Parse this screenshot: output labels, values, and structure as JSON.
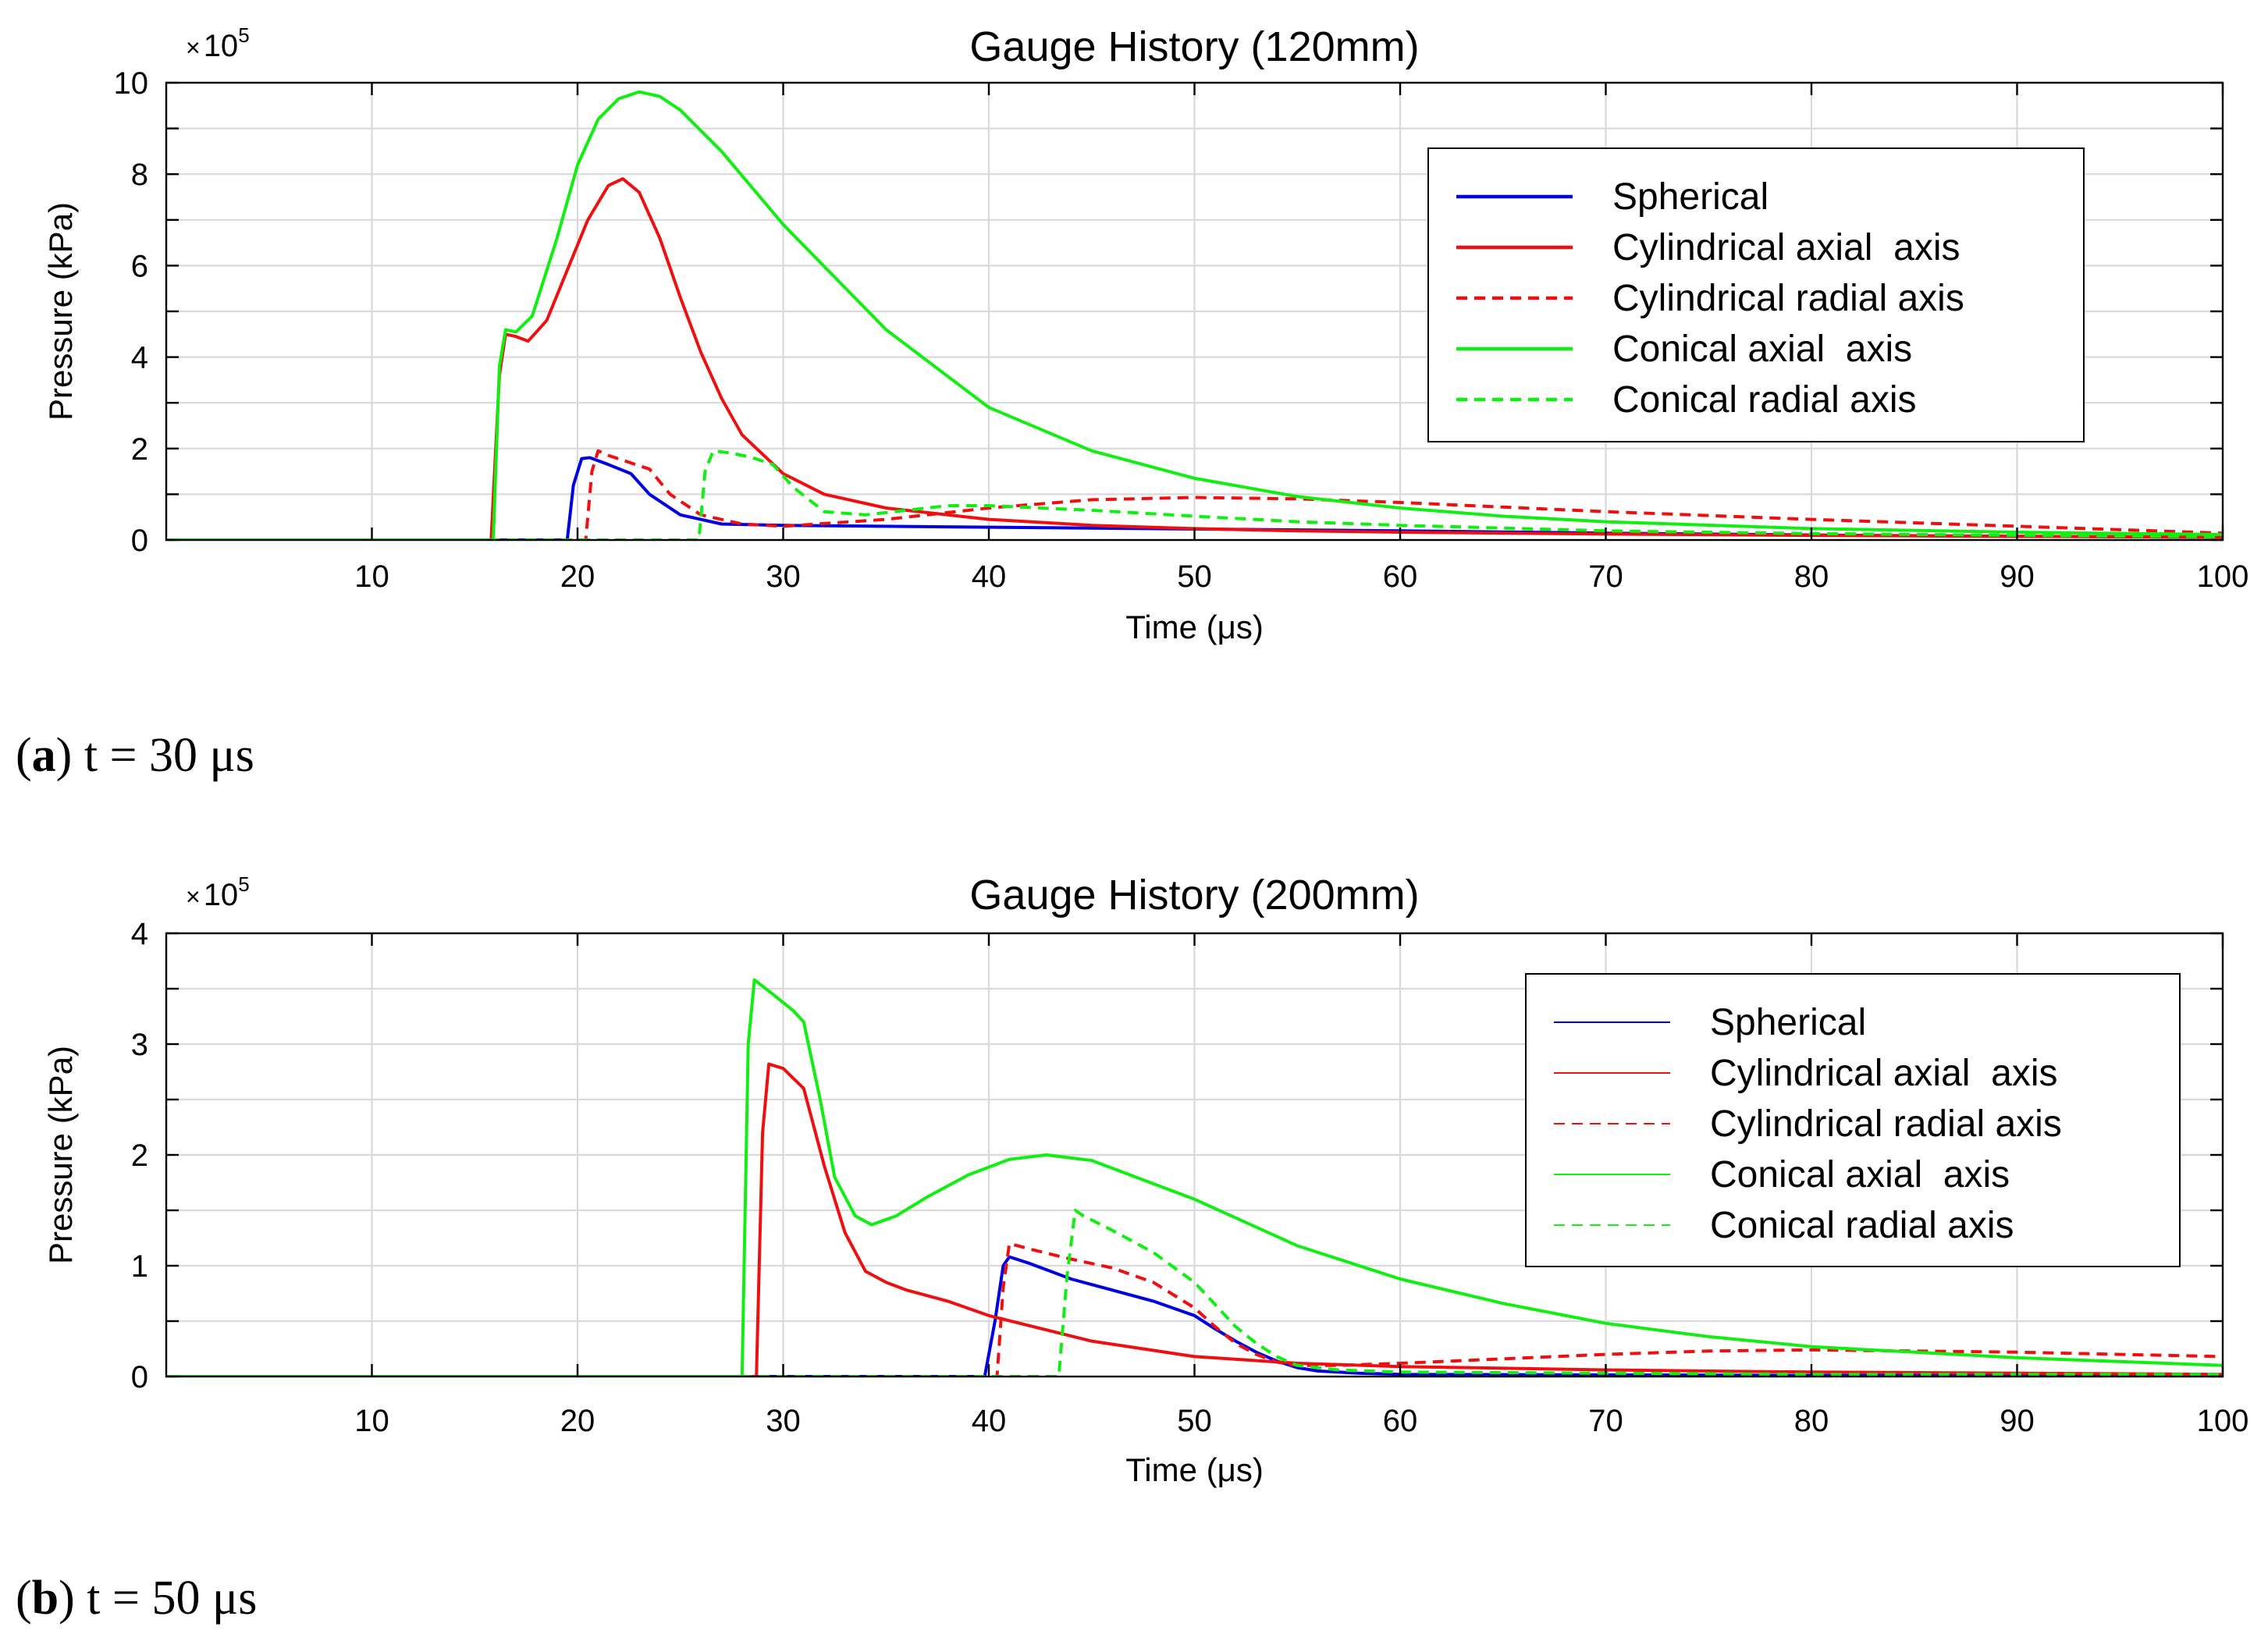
{
  "chart_data": [
    {
      "type": "line",
      "title": "Gauge History (120mm)",
      "xlabel": "Time (μs)",
      "ylabel": "Pressure (kPa)",
      "y_multiplier": "10",
      "y_multiplier_exp": "5",
      "xlim": [
        0,
        100
      ],
      "ylim": [
        0,
        10
      ],
      "xticks": [
        10,
        20,
        30,
        40,
        50,
        60,
        70,
        80,
        90,
        100
      ],
      "yticks": [
        0,
        2,
        4,
        6,
        8,
        10
      ],
      "grid": true,
      "legend_position": "top-right",
      "caption_letter": "a",
      "caption_text": "t = 30 μs",
      "series": [
        {
          "name": "Spherical",
          "color": "#0000e0",
          "dash": "solid",
          "x": [
            0,
            19.5,
            19.8,
            20.2,
            20.6,
            21.5,
            22.6,
            23.5,
            25,
            27,
            30,
            40,
            50,
            60,
            70,
            80,
            90,
            100
          ],
          "y": [
            0,
            0,
            1.2,
            1.78,
            1.8,
            1.65,
            1.45,
            1.0,
            0.55,
            0.35,
            0.32,
            0.28,
            0.24,
            0.2,
            0.15,
            0.11,
            0.08,
            0.06
          ]
        },
        {
          "name": "Cylindrical axial  axis",
          "color": "#ee1010",
          "dash": "solid",
          "x": [
            0,
            15.8,
            16.2,
            16.5,
            17.0,
            17.6,
            18.5,
            19.5,
            20.5,
            21.5,
            22.2,
            23,
            24,
            25,
            26,
            27,
            28,
            30,
            32,
            35,
            40,
            45,
            50,
            55,
            60,
            70,
            80,
            90,
            100
          ],
          "y": [
            0,
            0,
            3.6,
            4.5,
            4.45,
            4.35,
            4.8,
            5.9,
            7.0,
            7.75,
            7.9,
            7.6,
            6.6,
            5.3,
            4.1,
            3.1,
            2.3,
            1.45,
            1.0,
            0.7,
            0.45,
            0.32,
            0.25,
            0.2,
            0.17,
            0.13,
            0.1,
            0.08,
            0.06
          ]
        },
        {
          "name": "Cylindrical radial axis",
          "color": "#ee1010",
          "dash": "dash",
          "x": [
            0,
            20.4,
            20.7,
            21.0,
            21.5,
            22.5,
            23.5,
            24.5,
            26,
            28,
            30,
            35,
            40,
            45,
            50,
            55,
            60,
            70,
            80,
            90,
            100
          ],
          "y": [
            0,
            0,
            1.5,
            1.95,
            1.85,
            1.7,
            1.55,
            1.0,
            0.55,
            0.35,
            0.3,
            0.45,
            0.7,
            0.88,
            0.93,
            0.9,
            0.82,
            0.62,
            0.45,
            0.3,
            0.15
          ]
        },
        {
          "name": "Conical axial  axis",
          "color": "#11ee11",
          "dash": "solid",
          "x": [
            0,
            15.9,
            16.2,
            16.5,
            17.0,
            17.8,
            19,
            20,
            21,
            22,
            23,
            24,
            25,
            27,
            30,
            35,
            40,
            45,
            50,
            55,
            60,
            65,
            70,
            80,
            90,
            100
          ],
          "y": [
            0,
            0,
            3.8,
            4.6,
            4.55,
            4.9,
            6.6,
            8.2,
            9.2,
            9.65,
            9.8,
            9.7,
            9.4,
            8.5,
            6.9,
            4.6,
            2.9,
            1.95,
            1.35,
            0.95,
            0.7,
            0.52,
            0.4,
            0.25,
            0.17,
            0.12
          ]
        },
        {
          "name": "Conical radial axis",
          "color": "#11ee11",
          "dash": "dash",
          "x": [
            0,
            25.9,
            26.2,
            26.6,
            27.5,
            28.5,
            29.5,
            30.5,
            32,
            34,
            36,
            38,
            40,
            45,
            50,
            55,
            60,
            70,
            80,
            90,
            100
          ],
          "y": [
            0,
            0,
            1.5,
            1.95,
            1.9,
            1.8,
            1.65,
            1.15,
            0.62,
            0.55,
            0.65,
            0.75,
            0.75,
            0.65,
            0.52,
            0.4,
            0.32,
            0.2,
            0.14,
            0.1,
            0.07
          ]
        }
      ]
    },
    {
      "type": "line",
      "title": "Gauge History (200mm)",
      "xlabel": "Time (μs)",
      "ylabel": "Pressure (kPa)",
      "y_multiplier": "10",
      "y_multiplier_exp": "5",
      "xlim": [
        0,
        100
      ],
      "ylim": [
        0,
        4
      ],
      "xticks": [
        10,
        20,
        30,
        40,
        50,
        60,
        70,
        80,
        90,
        100
      ],
      "yticks": [
        0,
        1,
        2,
        3,
        4
      ],
      "grid": true,
      "legend_position": "top-right",
      "caption_letter": "b",
      "caption_text": "t = 50 μs",
      "series": [
        {
          "name": "Spherical",
          "color": "#0000e0",
          "dash": "solid",
          "x": [
            0,
            39.8,
            40.3,
            40.7,
            41.0,
            42,
            44,
            46,
            48,
            50,
            51,
            52,
            53,
            54,
            55,
            56,
            58,
            60,
            70,
            80,
            90,
            100
          ],
          "y": [
            0,
            0,
            0.5,
            1.0,
            1.08,
            1.02,
            0.88,
            0.78,
            0.68,
            0.55,
            0.43,
            0.32,
            0.22,
            0.14,
            0.08,
            0.05,
            0.03,
            0.02,
            0.015,
            0.01,
            0.01,
            0.01
          ]
        },
        {
          "name": "Cylindrical axial  axis",
          "color": "#ee1010",
          "dash": "solid",
          "x": [
            0,
            28.7,
            29.0,
            29.3,
            30,
            31,
            32,
            33,
            34,
            35,
            36,
            38,
            40,
            45,
            50,
            55,
            60,
            70,
            80,
            90,
            100
          ],
          "y": [
            0,
            0,
            2.2,
            2.82,
            2.78,
            2.6,
            1.9,
            1.3,
            0.95,
            0.85,
            0.78,
            0.68,
            0.55,
            0.32,
            0.18,
            0.12,
            0.09,
            0.06,
            0.04,
            0.03,
            0.02
          ]
        },
        {
          "name": "Cylindrical radial axis",
          "color": "#ee1010",
          "dash": "dash",
          "x": [
            0,
            40.4,
            40.7,
            41.0,
            42,
            44,
            46,
            48,
            50,
            51,
            52,
            53,
            54,
            55,
            57,
            60,
            65,
            70,
            75,
            80,
            90,
            100
          ],
          "y": [
            0,
            0,
            0.8,
            1.2,
            1.15,
            1.06,
            0.98,
            0.85,
            0.62,
            0.45,
            0.3,
            0.2,
            0.13,
            0.1,
            0.1,
            0.12,
            0.16,
            0.2,
            0.23,
            0.24,
            0.22,
            0.18
          ]
        },
        {
          "name": "Conical axial  axis",
          "color": "#11ee11",
          "dash": "solid",
          "x": [
            0,
            28.0,
            28.3,
            28.6,
            29.5,
            30.5,
            31.0,
            31.8,
            32.5,
            33.5,
            34.3,
            35.5,
            37,
            39,
            41,
            42.8,
            45,
            50,
            55,
            60,
            65,
            70,
            75,
            80,
            90,
            100
          ],
          "y": [
            0,
            0,
            3.0,
            3.58,
            3.45,
            3.3,
            3.2,
            2.5,
            1.8,
            1.45,
            1.37,
            1.45,
            1.62,
            1.82,
            1.96,
            2.0,
            1.95,
            1.6,
            1.18,
            0.88,
            0.66,
            0.48,
            0.36,
            0.27,
            0.17,
            0.1
          ]
        },
        {
          "name": "Conical radial axis",
          "color": "#11ee11",
          "dash": "dash",
          "x": [
            0,
            43.4,
            43.8,
            44.2,
            44.6,
            46,
            48,
            50,
            51,
            52,
            53,
            54,
            55,
            57,
            60,
            70,
            80,
            90,
            100
          ],
          "y": [
            0,
            0,
            0.9,
            1.5,
            1.45,
            1.32,
            1.12,
            0.85,
            0.65,
            0.45,
            0.3,
            0.18,
            0.1,
            0.06,
            0.04,
            0.03,
            0.02,
            0.02,
            0.02
          ]
        }
      ]
    }
  ]
}
